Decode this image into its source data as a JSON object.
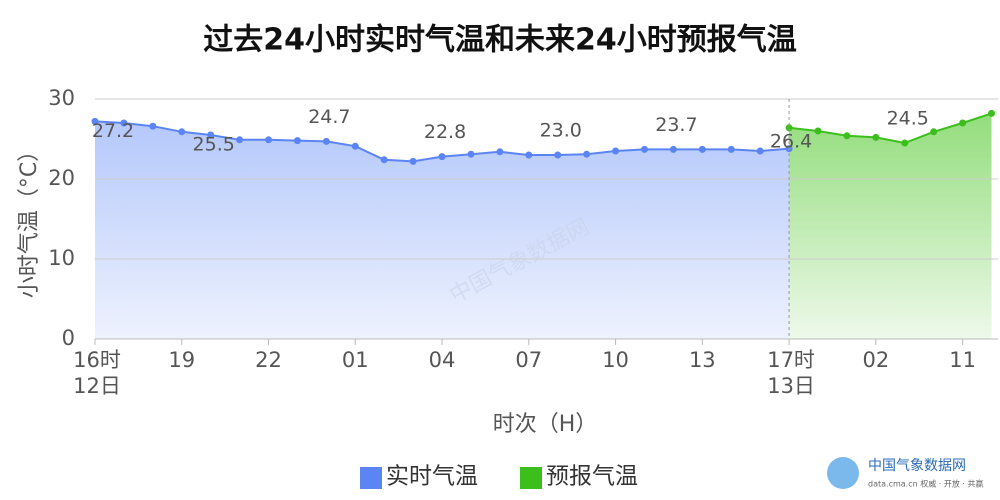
{
  "chart_data": {
    "type": "line",
    "title": "过去24小时实时气温和未来24小时预报气温",
    "y_label": "小时气温（°C）",
    "x_label": "时次（H）",
    "watermark": "中国气象数据网",
    "logo": {
      "name": "中国气象数据网",
      "tagline": "data.cma.cn 权威 · 开放 · 共赢"
    },
    "categories": [
      "16时\n12日",
      null,
      null,
      "19",
      null,
      null,
      "22",
      null,
      null,
      "01",
      null,
      null,
      "04",
      null,
      null,
      "07",
      null,
      null,
      "10",
      null,
      null,
      "13",
      null,
      null,
      "17时\n13日",
      null,
      null,
      "02",
      null,
      null,
      "11",
      null
    ],
    "ylim": [
      0,
      30
    ],
    "yticks": [
      0,
      10,
      20,
      30
    ],
    "grid": true,
    "legend": "bottom",
    "series": [
      {
        "name": "实时气温",
        "color": "#5b85f5",
        "values": [
          27.2,
          27.0,
          26.6,
          25.9,
          25.5,
          24.9,
          24.9,
          24.8,
          24.7,
          24.1,
          22.4,
          22.2,
          22.8,
          23.1,
          23.4,
          23.0,
          23.0,
          23.1,
          23.5,
          23.7,
          23.7,
          23.7,
          23.7,
          23.5,
          23.8,
          null,
          null,
          null,
          null,
          null,
          null,
          null
        ],
        "value_labels": [
          "27.2",
          null,
          null,
          null,
          "25.5",
          null,
          null,
          null,
          "24.7",
          null,
          null,
          null,
          "22.8",
          null,
          null,
          null,
          "23.0",
          null,
          null,
          null,
          "23.7",
          null,
          null,
          null,
          null,
          null,
          null,
          null,
          null,
          null,
          null,
          null
        ]
      },
      {
        "name": "预报气温",
        "color": "#3cbf1c",
        "values": [
          null,
          null,
          null,
          null,
          null,
          null,
          null,
          null,
          null,
          null,
          null,
          null,
          null,
          null,
          null,
          null,
          null,
          null,
          null,
          null,
          null,
          null,
          null,
          null,
          26.4,
          26.0,
          25.4,
          25.2,
          24.5,
          25.9,
          27.0,
          28.2
        ],
        "value_labels": [
          null,
          null,
          null,
          null,
          null,
          null,
          null,
          null,
          null,
          null,
          null,
          null,
          null,
          null,
          null,
          null,
          null,
          null,
          null,
          null,
          null,
          null,
          null,
          null,
          "26.4",
          null,
          null,
          null,
          "24.5",
          null,
          null,
          null
        ]
      }
    ]
  }
}
